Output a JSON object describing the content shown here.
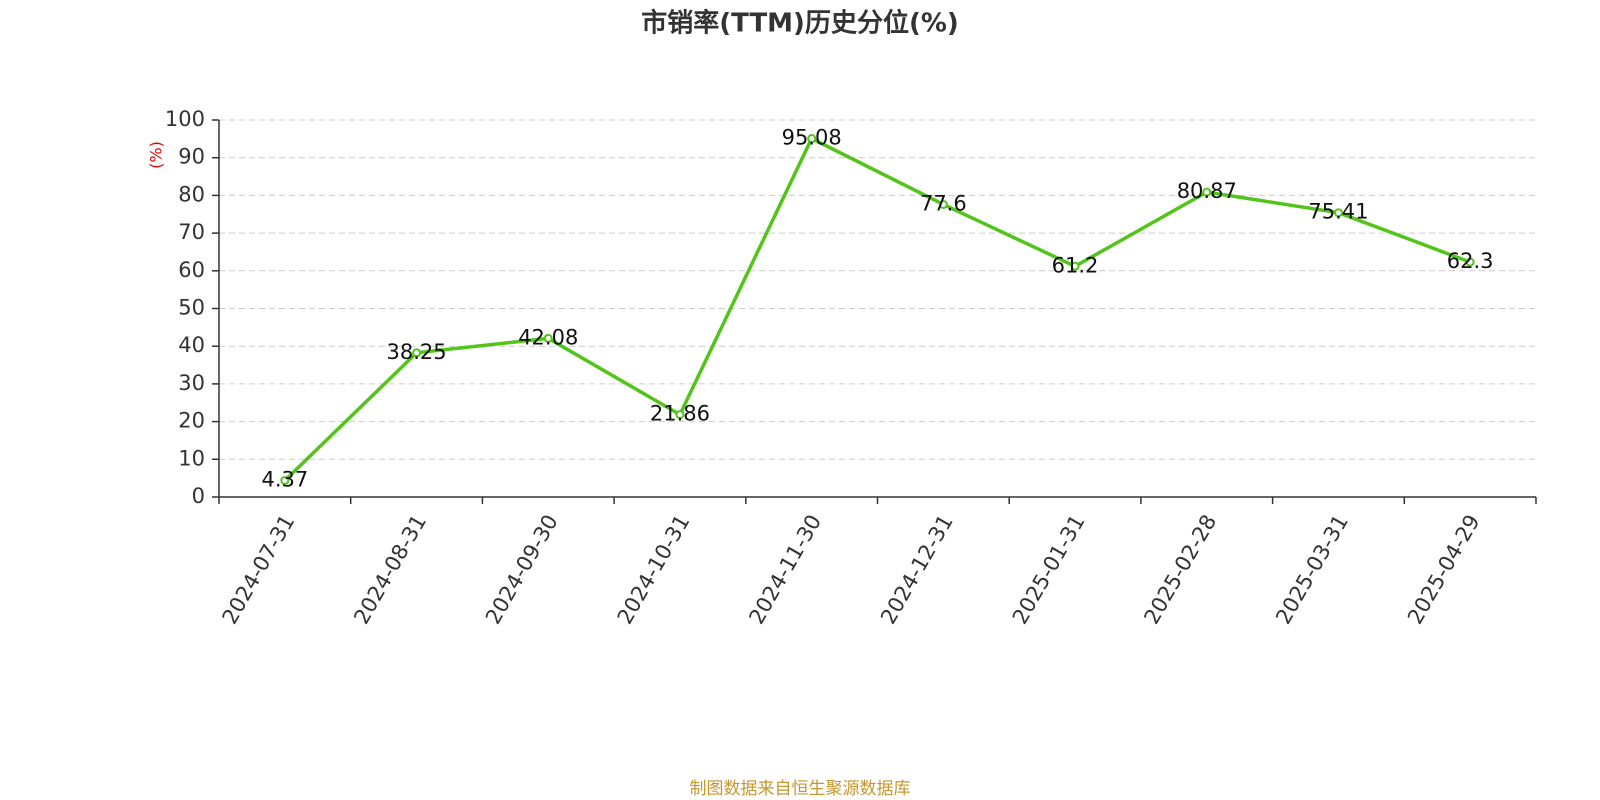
{
  "chart_data": {
    "type": "line",
    "title": "市销率(TTM)历史分位(%)",
    "y_label": "(%)",
    "source": "制图数据来自恒生聚源数据库",
    "categories": [
      "2024-07-31",
      "2024-08-31",
      "2024-09-30",
      "2024-10-31",
      "2024-11-30",
      "2024-12-31",
      "2025-01-31",
      "2025-02-28",
      "2025-03-31",
      "2025-04-29"
    ],
    "series": [
      {
        "name": "市销率(TTM)历史分位",
        "color": "#52c41a",
        "values": [
          4.37,
          38.25,
          42.08,
          21.86,
          95.08,
          77.6,
          61.2,
          80.87,
          75.41,
          62.3
        ]
      }
    ],
    "ylim": [
      0,
      100
    ],
    "yticks": [
      0,
      10,
      20,
      30,
      40,
      50,
      60,
      70,
      80,
      90,
      100
    ],
    "grid": true
  }
}
